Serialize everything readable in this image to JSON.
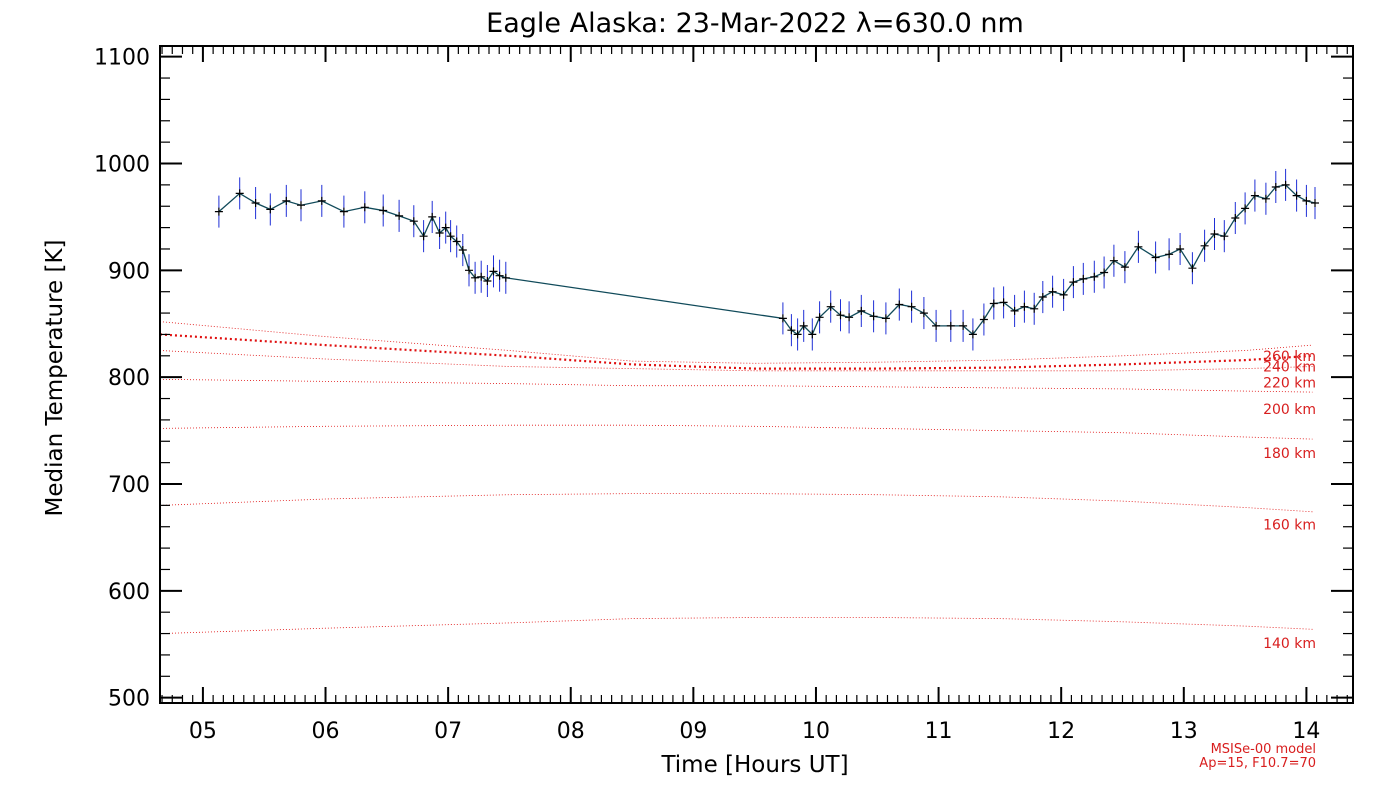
{
  "chart_data": {
    "type": "line",
    "title": "Eagle Alaska: 23-Mar-2022 λ=630.0 nm",
    "xlabel": "Time [Hours UT]",
    "ylabel": "Median Temperature [K]",
    "xlim": [
      4.65,
      14.38
    ],
    "ylim": [
      495,
      1110
    ],
    "xticks": [
      {
        "value": 5,
        "label": "05"
      },
      {
        "value": 6,
        "label": "06"
      },
      {
        "value": 7,
        "label": "07"
      },
      {
        "value": 8,
        "label": "08"
      },
      {
        "value": 9,
        "label": "09"
      },
      {
        "value": 10,
        "label": "10"
      },
      {
        "value": 11,
        "label": "11"
      },
      {
        "value": 12,
        "label": "12"
      },
      {
        "value": 13,
        "label": "13"
      },
      {
        "value": 14,
        "label": "14"
      }
    ],
    "yticks": [
      500,
      600,
      700,
      800,
      900,
      1000,
      1100
    ],
    "grid": false,
    "colors": {
      "data_line": "#000000",
      "error_bars": "#1f2fd6",
      "connector": "#104a5a",
      "model": "#e01010"
    },
    "series": [
      {
        "name": "",
        "error": 15,
        "x": [
          5.13,
          5.3,
          5.43,
          5.55,
          5.68,
          5.8,
          5.97,
          6.15,
          6.32,
          6.47,
          6.6,
          6.72,
          6.8,
          6.87,
          6.93,
          6.98,
          7.02,
          7.07,
          7.12,
          7.17,
          7.22,
          7.27,
          7.32,
          7.37,
          7.42,
          7.47,
          9.73,
          9.8,
          9.85,
          9.9,
          9.97,
          10.03,
          10.12,
          10.2,
          10.27,
          10.37,
          10.47,
          10.57,
          10.68,
          10.78,
          10.88,
          10.98,
          11.1,
          11.2,
          11.28,
          11.37,
          11.45,
          11.53,
          11.62,
          11.7,
          11.78,
          11.85,
          11.93,
          12.02,
          12.1,
          12.18,
          12.27,
          12.35,
          12.43,
          12.52,
          12.63,
          12.77,
          12.88,
          12.97,
          13.07,
          13.17,
          13.25,
          13.33,
          13.42,
          13.5,
          13.58,
          13.67,
          13.75,
          13.83,
          13.92,
          14.0,
          14.07
        ],
        "y": [
          955,
          972,
          963,
          957,
          965,
          961,
          965,
          955,
          959,
          956,
          951,
          946,
          932,
          950,
          935,
          940,
          932,
          927,
          919,
          900,
          893,
          894,
          890,
          899,
          895,
          893,
          855,
          844,
          840,
          848,
          840,
          856,
          866,
          858,
          856,
          862,
          857,
          855,
          868,
          866,
          860,
          848,
          848,
          848,
          840,
          854,
          869,
          870,
          862,
          866,
          864,
          875,
          880,
          877,
          889,
          892,
          894,
          898,
          909,
          903,
          922,
          912,
          915,
          920,
          902,
          923,
          934,
          932,
          949,
          958,
          970,
          967,
          978,
          980,
          970,
          965,
          963
        ]
      }
    ],
    "model_curves": [
      {
        "label": "260 km",
        "heavy": true,
        "x": [
          4.65,
          6.0,
          7.5,
          8.5,
          9.5,
          10.5,
          11.5,
          12.5,
          13.5,
          14.05
        ],
        "y": [
          840,
          830,
          820,
          812,
          808,
          808,
          809,
          812,
          816,
          820
        ]
      },
      {
        "label": "240 km",
        "heavy": false,
        "x": [
          4.65,
          6.0,
          7.5,
          8.5,
          9.5,
          10.5,
          11.5,
          12.5,
          13.5,
          14.05
        ],
        "y": [
          852,
          838,
          825,
          815,
          813,
          814,
          816,
          820,
          825,
          830
        ]
      },
      {
        "label": "220 km",
        "heavy": false,
        "x": [
          4.65,
          6.0,
          7.5,
          8.5,
          9.5,
          10.5,
          11.5,
          12.5,
          13.5,
          14.05
        ],
        "y": [
          825,
          817,
          810,
          808,
          806,
          806,
          806,
          806,
          808,
          810
        ]
      },
      {
        "label": "200 km",
        "heavy": false,
        "x": [
          4.65,
          6.0,
          7.5,
          8.5,
          9.5,
          10.5,
          11.5,
          12.5,
          13.5,
          14.05
        ],
        "y": [
          798,
          796,
          794,
          792,
          792,
          791,
          790,
          789,
          787,
          786
        ]
      },
      {
        "label": "180 km",
        "heavy": false,
        "x": [
          4.65,
          6.0,
          7.5,
          8.5,
          9.5,
          10.5,
          11.5,
          12.5,
          13.5,
          14.05
        ],
        "y": [
          752,
          754,
          755,
          755,
          754,
          752,
          750,
          748,
          744,
          742
        ]
      },
      {
        "label": "160 km",
        "heavy": false,
        "x": [
          4.65,
          6.0,
          7.5,
          8.5,
          9.5,
          10.5,
          11.5,
          12.5,
          13.5,
          14.05
        ],
        "y": [
          680,
          686,
          690,
          691,
          691,
          690,
          688,
          684,
          678,
          674
        ]
      },
      {
        "label": "140 km",
        "heavy": false,
        "x": [
          4.65,
          6.0,
          7.5,
          8.5,
          9.5,
          10.5,
          11.5,
          12.5,
          13.5,
          14.05
        ],
        "y": [
          560,
          565,
          570,
          574,
          575,
          575,
          574,
          571,
          567,
          564
        ]
      }
    ],
    "model_label_values": [
      {
        "label": "260 km",
        "y": 820
      },
      {
        "label": "240 km",
        "y": 810
      },
      {
        "label": "220 km",
        "y": 795
      },
      {
        "label": "200 km",
        "y": 770
      },
      {
        "label": "180 km",
        "y": 729
      },
      {
        "label": "160 km",
        "y": 662
      },
      {
        "label": "140 km",
        "y": 551
      }
    ],
    "annotations": [
      "MSISe-00 model",
      "Ap=15, F10.7=70"
    ]
  }
}
